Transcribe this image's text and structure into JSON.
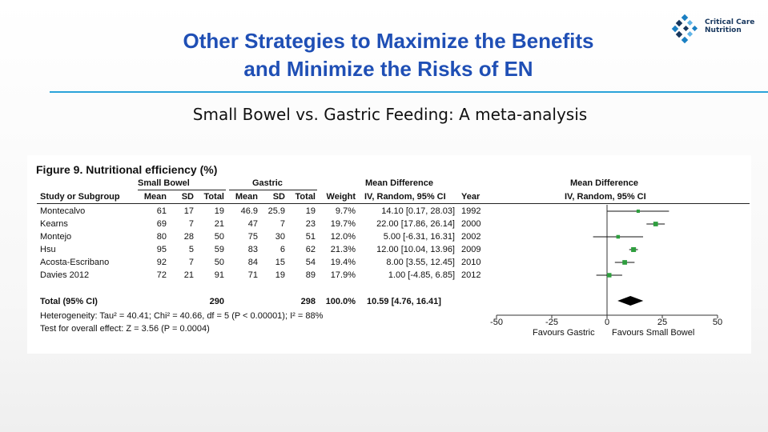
{
  "slide": {
    "title_line1": "Other Strategies to Maximize the Benefits",
    "title_line2": "and Minimize the Risks of EN",
    "subtitle": "Small Bowel vs. Gastric Feeding: A meta-analysis",
    "logo_line1": "Critical Care",
    "logo_line2": "Nutrition",
    "accent_color": "#1f4fb5",
    "line_color": "#2aa3d9"
  },
  "chart_data": {
    "type": "forest",
    "title": "Figure 9. Nutritional efficiency (%)",
    "group_headers": {
      "small_bowel": "Small Bowel",
      "gastric": "Gastric",
      "mean_diff_text": "Mean Difference",
      "mean_diff_plot": "Mean Difference"
    },
    "column_headers": {
      "study": "Study or Subgroup",
      "sb_mean": "Mean",
      "sb_sd": "SD",
      "sb_total": "Total",
      "g_mean": "Mean",
      "g_sd": "SD",
      "g_total": "Total",
      "weight": "Weight",
      "ci": "IV, Random, 95% CI",
      "year": "Year",
      "plot_ci": "IV, Random, 95% CI"
    },
    "studies": [
      {
        "study": "Montecalvo",
        "sb_mean": "61",
        "sb_sd": "17",
        "sb_total": "19",
        "g_mean": "46.9",
        "g_sd": "25.9",
        "g_total": "19",
        "weight": "9.7%",
        "ci_text": "14.10 [0.17, 28.03]",
        "year": "1992",
        "md": 14.1,
        "lo": 0.17,
        "hi": 28.03,
        "w": 9.7
      },
      {
        "study": "Kearns",
        "sb_mean": "69",
        "sb_sd": "7",
        "sb_total": "21",
        "g_mean": "47",
        "g_sd": "7",
        "g_total": "23",
        "weight": "19.7%",
        "ci_text": "22.00 [17.86, 26.14]",
        "year": "2000",
        "md": 22.0,
        "lo": 17.86,
        "hi": 26.14,
        "w": 19.7
      },
      {
        "study": "Montejo",
        "sb_mean": "80",
        "sb_sd": "28",
        "sb_total": "50",
        "g_mean": "75",
        "g_sd": "30",
        "g_total": "51",
        "weight": "12.0%",
        "ci_text": "5.00 [-6.31, 16.31]",
        "year": "2002",
        "md": 5.0,
        "lo": -6.31,
        "hi": 16.31,
        "w": 12.0
      },
      {
        "study": "Hsu",
        "sb_mean": "95",
        "sb_sd": "5",
        "sb_total": "59",
        "g_mean": "83",
        "g_sd": "6",
        "g_total": "62",
        "weight": "21.3%",
        "ci_text": "12.00 [10.04, 13.96]",
        "year": "2009",
        "md": 12.0,
        "lo": 10.04,
        "hi": 13.96,
        "w": 21.3
      },
      {
        "study": "Acosta-Escribano",
        "sb_mean": "92",
        "sb_sd": "7",
        "sb_total": "50",
        "g_mean": "84",
        "g_sd": "15",
        "g_total": "54",
        "weight": "19.4%",
        "ci_text": "8.00 [3.55, 12.45]",
        "year": "2010",
        "md": 8.0,
        "lo": 3.55,
        "hi": 12.45,
        "w": 19.4
      },
      {
        "study": "Davies 2012",
        "sb_mean": "72",
        "sb_sd": "21",
        "sb_total": "91",
        "g_mean": "71",
        "g_sd": "19",
        "g_total": "89",
        "weight": "17.9%",
        "ci_text": "1.00 [-4.85, 6.85]",
        "year": "2012",
        "md": 1.0,
        "lo": -4.85,
        "hi": 6.85,
        "w": 17.9
      }
    ],
    "total": {
      "label": "Total (95% CI)",
      "sb_total": "290",
      "g_total": "298",
      "weight": "100.0%",
      "ci_text": "10.59 [4.76, 16.41]",
      "md": 10.59,
      "lo": 4.76,
      "hi": 16.41
    },
    "heterogeneity": "Heterogeneity: Tau² = 40.41; Chi² = 40.66, df = 5 (P < 0.00001); I² = 88%",
    "overall_effect": "Test for overall effect: Z = 3.56 (P = 0.0004)",
    "x_ticks": [
      -50,
      -25,
      0,
      25,
      50
    ],
    "x_tick_labels": [
      "-50",
      "-25",
      "0",
      "25",
      "50"
    ],
    "xlim": [
      -50,
      50
    ],
    "favours_left": "Favours Gastric",
    "favours_right": "Favours Small Bowel",
    "marker_color": "#2e9e3e"
  }
}
